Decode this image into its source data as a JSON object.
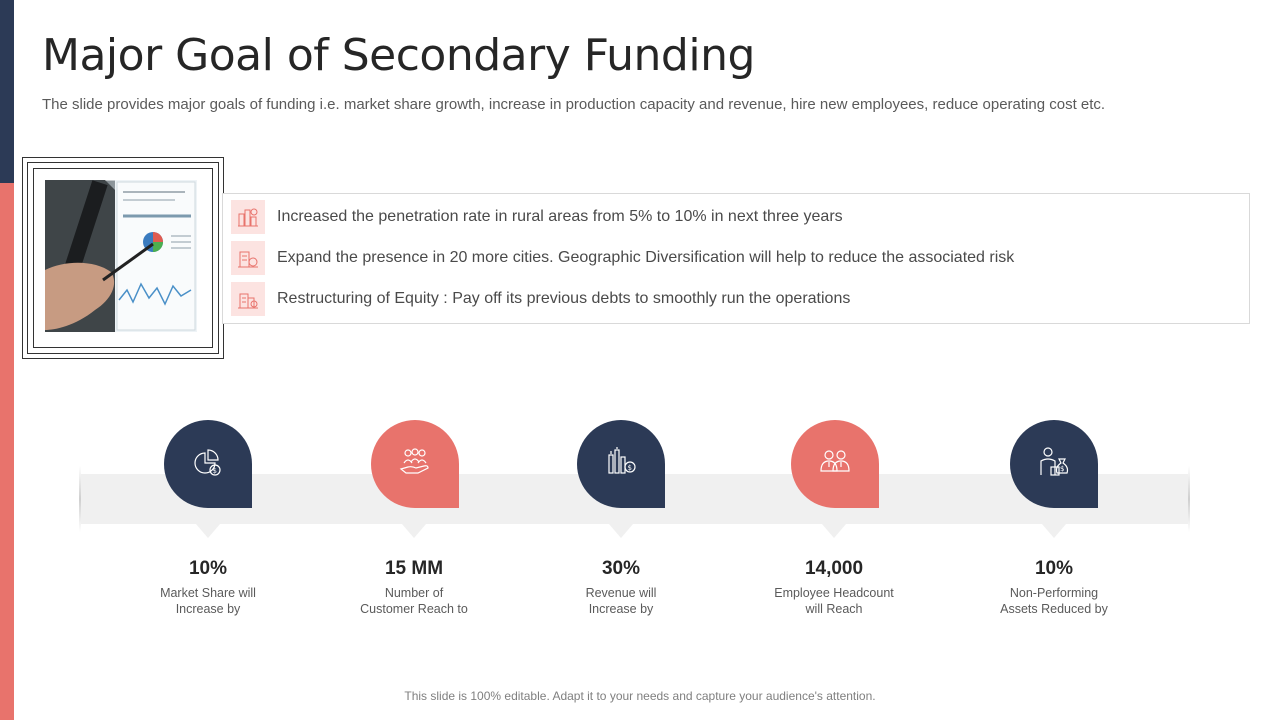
{
  "title": "Major Goal of Secondary Funding",
  "subtitle": "The slide provides major goals of funding i.e. market share growth, increase in production capacity and revenue, hire new employees, reduce operating cost etc.",
  "goals": [
    {
      "icon": "city-growth-icon",
      "text": "Increased the penetration rate in rural areas from 5% to 10% in next three years"
    },
    {
      "icon": "city-money-icon",
      "text": "Expand the presence in 20 more cities. Geographic Diversification will help to reduce the associated risk"
    },
    {
      "icon": "equity-building-icon",
      "text": "Restructuring  of Equity : Pay off its previous debts to smoothly run the operations"
    }
  ],
  "stats": [
    {
      "value": "10%",
      "label": "Market Share will\nIncrease by",
      "icon": "pie-chart-dollar-icon",
      "color": "#2c3a56"
    },
    {
      "value": "15 MM",
      "label": "Number  of\nCustomer Reach to",
      "icon": "customers-hand-icon",
      "color": "#e8736c"
    },
    {
      "value": "30%",
      "label": "Revenue  will\nIncrease by",
      "icon": "revenue-building-icon",
      "color": "#2c3a56"
    },
    {
      "value": "14,000",
      "label": "Employee Headcount\nwill Reach",
      "icon": "employees-icon",
      "color": "#e8736c"
    },
    {
      "value": "10%",
      "label": "Non-Performing\nAssets Reduced by",
      "icon": "person-money-bag-icon",
      "color": "#2c3a56"
    }
  ],
  "footer": "This slide is 100% editable. Adapt it to your needs and capture your audience's attention.",
  "colors": {
    "navy": "#2c3a56",
    "coral": "#e8736c",
    "track": "#f0f0f0"
  }
}
